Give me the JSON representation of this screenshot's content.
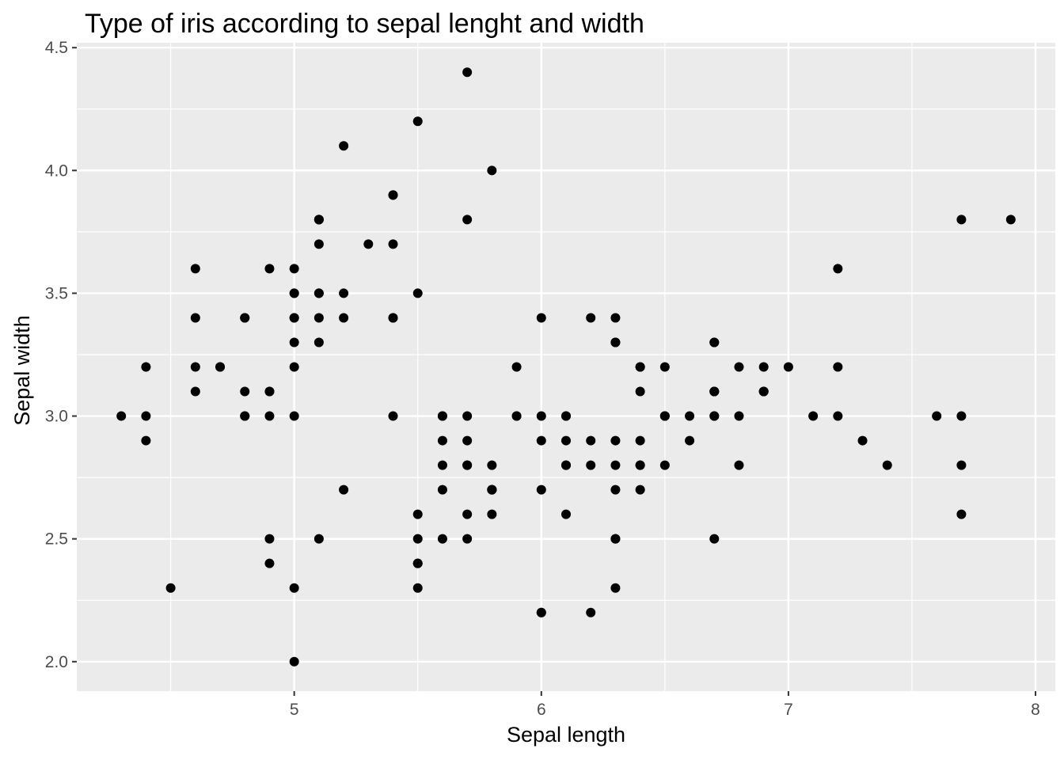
{
  "chart_data": {
    "type": "scatter",
    "title": "Type of iris according to sepal lenght and width",
    "xlabel": "Sepal length",
    "ylabel": "Sepal width",
    "xlim": [
      4.12,
      8.08
    ],
    "ylim": [
      1.88,
      4.52
    ],
    "x_ticks": [
      5,
      6,
      7,
      8
    ],
    "x_tick_labels": [
      "5",
      "6",
      "7",
      "8"
    ],
    "x_minor_ticks": [
      4.5,
      5.5,
      6.5,
      7.5
    ],
    "y_ticks": [
      2.0,
      2.5,
      3.0,
      3.5,
      4.0,
      4.5
    ],
    "y_tick_labels": [
      "2.0",
      "2.5",
      "3.0",
      "3.5",
      "4.0",
      "4.5"
    ],
    "y_minor_ticks": [
      2.25,
      2.75,
      3.25,
      3.75,
      4.25
    ],
    "grid": true,
    "colors": {
      "panel": "#ebebeb",
      "grid": "#ffffff",
      "point": "#000000",
      "tick_text": "#4d4d4d",
      "tick_mark": "#333333"
    },
    "points": [
      [
        5.1,
        3.5
      ],
      [
        4.9,
        3.0
      ],
      [
        4.7,
        3.2
      ],
      [
        4.6,
        3.1
      ],
      [
        5.0,
        3.6
      ],
      [
        5.4,
        3.9
      ],
      [
        4.6,
        3.4
      ],
      [
        5.0,
        3.4
      ],
      [
        4.4,
        2.9
      ],
      [
        4.9,
        3.1
      ],
      [
        5.4,
        3.7
      ],
      [
        4.8,
        3.4
      ],
      [
        4.8,
        3.0
      ],
      [
        4.3,
        3.0
      ],
      [
        5.8,
        4.0
      ],
      [
        5.7,
        4.4
      ],
      [
        5.4,
        3.9
      ],
      [
        5.1,
        3.5
      ],
      [
        5.7,
        3.8
      ],
      [
        5.1,
        3.8
      ],
      [
        5.4,
        3.4
      ],
      [
        5.1,
        3.7
      ],
      [
        4.6,
        3.6
      ],
      [
        5.1,
        3.3
      ],
      [
        4.8,
        3.4
      ],
      [
        5.0,
        3.0
      ],
      [
        5.0,
        3.4
      ],
      [
        5.2,
        3.5
      ],
      [
        5.2,
        3.4
      ],
      [
        4.7,
        3.2
      ],
      [
        4.8,
        3.1
      ],
      [
        5.4,
        3.4
      ],
      [
        5.2,
        4.1
      ],
      [
        5.5,
        4.2
      ],
      [
        4.9,
        3.1
      ],
      [
        5.0,
        3.2
      ],
      [
        5.5,
        3.5
      ],
      [
        4.9,
        3.6
      ],
      [
        4.4,
        3.0
      ],
      [
        5.1,
        3.4
      ],
      [
        5.0,
        3.5
      ],
      [
        4.5,
        2.3
      ],
      [
        4.4,
        3.2
      ],
      [
        5.0,
        3.5
      ],
      [
        5.1,
        3.8
      ],
      [
        4.8,
        3.0
      ],
      [
        5.1,
        3.8
      ],
      [
        4.6,
        3.2
      ],
      [
        5.3,
        3.7
      ],
      [
        5.0,
        3.3
      ],
      [
        7.0,
        3.2
      ],
      [
        6.4,
        3.2
      ],
      [
        6.9,
        3.1
      ],
      [
        5.5,
        2.3
      ],
      [
        6.5,
        2.8
      ],
      [
        5.7,
        2.8
      ],
      [
        6.3,
        3.3
      ],
      [
        4.9,
        2.4
      ],
      [
        6.6,
        2.9
      ],
      [
        5.2,
        2.7
      ],
      [
        5.0,
        2.0
      ],
      [
        5.9,
        3.0
      ],
      [
        6.0,
        2.2
      ],
      [
        6.1,
        2.9
      ],
      [
        5.6,
        2.9
      ],
      [
        6.7,
        3.1
      ],
      [
        5.6,
        3.0
      ],
      [
        5.8,
        2.7
      ],
      [
        6.2,
        2.2
      ],
      [
        5.6,
        2.5
      ],
      [
        5.9,
        3.2
      ],
      [
        6.1,
        2.8
      ],
      [
        6.3,
        2.5
      ],
      [
        6.1,
        2.8
      ],
      [
        6.4,
        2.9
      ],
      [
        6.6,
        3.0
      ],
      [
        6.8,
        2.8
      ],
      [
        6.7,
        3.0
      ],
      [
        6.0,
        2.9
      ],
      [
        5.7,
        2.6
      ],
      [
        5.5,
        2.4
      ],
      [
        5.5,
        2.4
      ],
      [
        5.8,
        2.7
      ],
      [
        6.0,
        2.7
      ],
      [
        5.4,
        3.0
      ],
      [
        6.0,
        3.4
      ],
      [
        6.7,
        3.1
      ],
      [
        6.3,
        2.3
      ],
      [
        5.6,
        3.0
      ],
      [
        5.5,
        2.5
      ],
      [
        5.5,
        2.6
      ],
      [
        6.1,
        3.0
      ],
      [
        5.8,
        2.6
      ],
      [
        5.0,
        2.3
      ],
      [
        5.6,
        2.7
      ],
      [
        5.7,
        3.0
      ],
      [
        5.7,
        2.9
      ],
      [
        6.2,
        2.9
      ],
      [
        5.1,
        2.5
      ],
      [
        5.7,
        2.8
      ],
      [
        6.3,
        3.3
      ],
      [
        5.8,
        2.7
      ],
      [
        7.1,
        3.0
      ],
      [
        6.3,
        2.9
      ],
      [
        6.5,
        3.0
      ],
      [
        7.6,
        3.0
      ],
      [
        4.9,
        2.5
      ],
      [
        7.3,
        2.9
      ],
      [
        6.7,
        2.5
      ],
      [
        7.2,
        3.6
      ],
      [
        6.5,
        3.2
      ],
      [
        6.4,
        2.7
      ],
      [
        6.8,
        3.0
      ],
      [
        5.7,
        2.5
      ],
      [
        5.8,
        2.8
      ],
      [
        6.4,
        3.2
      ],
      [
        6.5,
        3.0
      ],
      [
        7.7,
        3.8
      ],
      [
        7.7,
        2.6
      ],
      [
        6.0,
        2.2
      ],
      [
        6.9,
        3.2
      ],
      [
        5.6,
        2.8
      ],
      [
        7.7,
        2.8
      ],
      [
        6.3,
        2.7
      ],
      [
        6.7,
        3.3
      ],
      [
        7.2,
        3.2
      ],
      [
        6.2,
        2.8
      ],
      [
        6.1,
        3.0
      ],
      [
        6.4,
        2.8
      ],
      [
        7.2,
        3.0
      ],
      [
        7.4,
        2.8
      ],
      [
        7.9,
        3.8
      ],
      [
        6.4,
        2.8
      ],
      [
        6.3,
        2.8
      ],
      [
        6.1,
        2.6
      ],
      [
        7.7,
        3.0
      ],
      [
        6.3,
        3.4
      ],
      [
        6.4,
        3.1
      ],
      [
        6.0,
        3.0
      ],
      [
        6.9,
        3.1
      ],
      [
        6.7,
        3.1
      ],
      [
        6.9,
        3.1
      ],
      [
        5.8,
        2.7
      ],
      [
        6.8,
        3.2
      ],
      [
        6.7,
        3.3
      ],
      [
        6.7,
        3.0
      ],
      [
        6.3,
        2.5
      ],
      [
        6.5,
        3.0
      ],
      [
        6.2,
        3.4
      ],
      [
        5.9,
        3.0
      ]
    ]
  }
}
